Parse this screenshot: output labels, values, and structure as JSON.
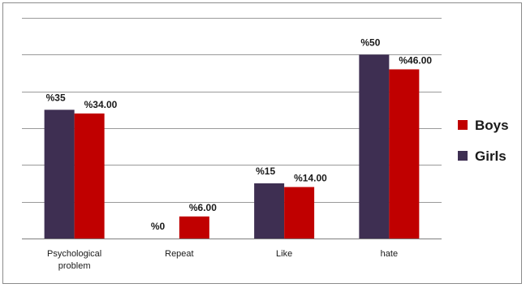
{
  "chart_data": {
    "type": "bar",
    "categories": [
      "Psychological problem",
      "Repeat",
      "Like",
      "hate"
    ],
    "category_lines": [
      [
        "Psychological",
        "problem"
      ],
      [
        "Repeat"
      ],
      [
        "Like"
      ],
      [
        "hate"
      ]
    ],
    "series": [
      {
        "name": "Girls",
        "color": "#3e2f52",
        "values": [
          35,
          0,
          15,
          50
        ],
        "labels": [
          "%35",
          "%0",
          "%15",
          "%50"
        ]
      },
      {
        "name": "Boys",
        "color": "#c00000",
        "values": [
          34,
          6,
          14,
          46
        ],
        "labels": [
          "%34.00",
          "%6.00",
          "%14.00",
          "%46.00"
        ]
      }
    ],
    "legend": {
      "position": "right",
      "entries": [
        {
          "name": "Boys",
          "color": "#c00000"
        },
        {
          "name": "Girls",
          "color": "#3e2f52"
        }
      ]
    },
    "ylim": [
      0,
      60
    ],
    "gridlines": [
      10,
      20,
      30,
      40,
      50,
      60
    ],
    "grid": true,
    "title": "",
    "xlabel": "",
    "ylabel": ""
  }
}
